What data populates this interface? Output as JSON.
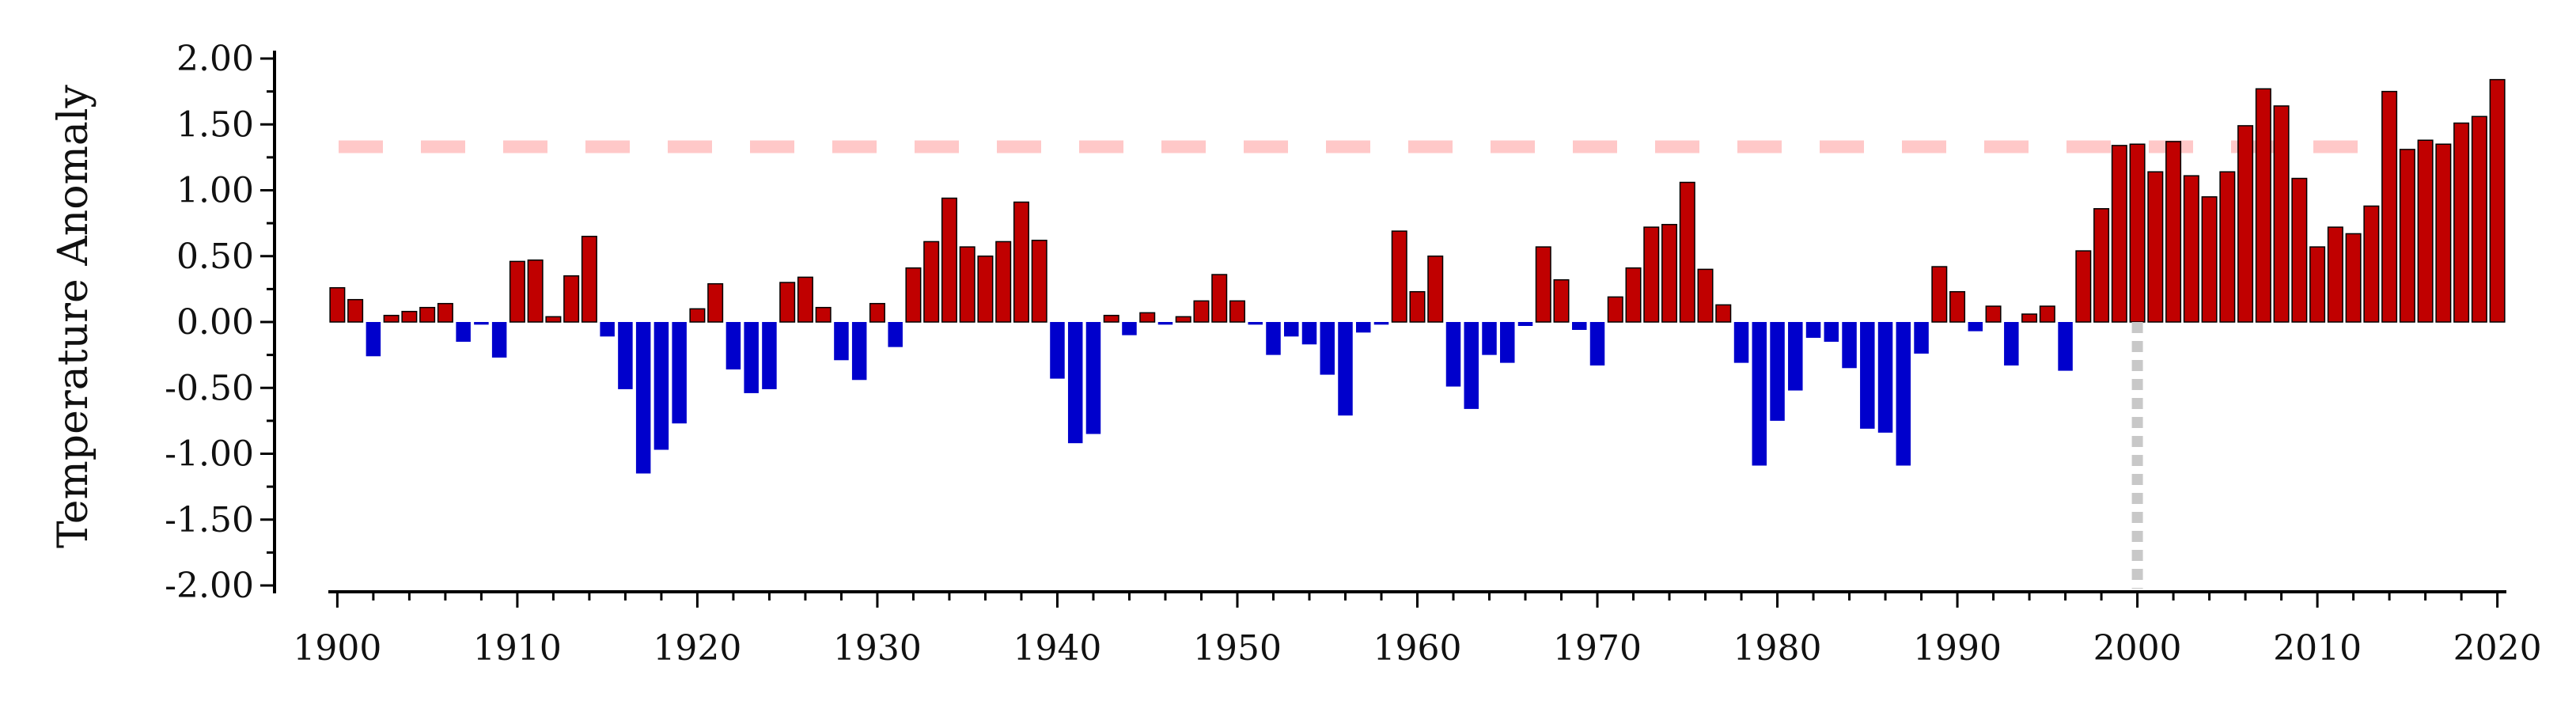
{
  "chart_data": {
    "type": "bar",
    "title": "",
    "ylabel": "Temperature Anomaly",
    "xlabel": "",
    "xlim": [
      1899.5,
      2020.5
    ],
    "ylim": [
      -2.0,
      2.0
    ],
    "y_ticks": [
      2.0,
      1.5,
      1.0,
      0.5,
      0.0,
      -0.5,
      -1.0,
      -1.5,
      -2.0
    ],
    "y_tick_labels": [
      "2.00",
      "1.50",
      "1.00",
      "0.50",
      "0.00",
      "-0.50",
      "-1.00",
      "-1.50",
      "-2.00"
    ],
    "x_ticks": [
      1900,
      1910,
      1920,
      1930,
      1940,
      1950,
      1960,
      1970,
      1980,
      1990,
      2000,
      2010,
      2020
    ],
    "x_tick_labels": [
      "1900",
      "1910",
      "1920",
      "1930",
      "1940",
      "1950",
      "1960",
      "1970",
      "1980",
      "1990",
      "2000",
      "2010",
      "2020"
    ],
    "grid": false,
    "legend": "none",
    "colors": {
      "positive": "#c00000",
      "negative": "#0000cc",
      "bar_outline": "#000000",
      "threshold_line": "#ffc8c8",
      "marker_line": "#c8c8c8"
    },
    "reference_lines": [
      {
        "orientation": "horizontal",
        "y": 1.33,
        "style": "dashed",
        "color": "#ffc8c8"
      },
      {
        "orientation": "vertical",
        "x": 2000,
        "y_from": -2.0,
        "y_to": 0.0,
        "style": "dotted",
        "color": "#c8c8c8"
      }
    ],
    "x": [
      1900,
      1901,
      1902,
      1903,
      1904,
      1905,
      1906,
      1907,
      1908,
      1909,
      1910,
      1911,
      1912,
      1913,
      1914,
      1915,
      1916,
      1917,
      1918,
      1919,
      1920,
      1921,
      1922,
      1923,
      1924,
      1925,
      1926,
      1927,
      1928,
      1929,
      1930,
      1931,
      1932,
      1933,
      1934,
      1935,
      1936,
      1937,
      1938,
      1939,
      1940,
      1941,
      1942,
      1943,
      1944,
      1945,
      1946,
      1947,
      1948,
      1949,
      1950,
      1951,
      1952,
      1953,
      1954,
      1955,
      1956,
      1957,
      1958,
      1959,
      1960,
      1961,
      1962,
      1963,
      1964,
      1965,
      1966,
      1967,
      1968,
      1969,
      1970,
      1971,
      1972,
      1973,
      1974,
      1975,
      1976,
      1977,
      1978,
      1979,
      1980,
      1981,
      1982,
      1983,
      1984,
      1985,
      1986,
      1987,
      1988,
      1989,
      1990,
      1991,
      1992,
      1993,
      1994,
      1995,
      1996,
      1997,
      1998,
      1999,
      2000,
      2001,
      2002,
      2003,
      2004,
      2005,
      2006,
      2007,
      2008,
      2009,
      2010,
      2011,
      2012,
      2013,
      2014,
      2015,
      2016,
      2017,
      2018,
      2019,
      2020
    ],
    "values": [
      0.26,
      0.17,
      -0.26,
      0.05,
      0.08,
      0.11,
      0.14,
      -0.15,
      -0.02,
      -0.27,
      0.46,
      0.47,
      0.04,
      0.35,
      0.65,
      -0.11,
      -0.51,
      -1.15,
      -0.97,
      -0.77,
      0.1,
      0.29,
      -0.36,
      -0.54,
      -0.51,
      0.3,
      0.34,
      0.11,
      -0.29,
      -0.44,
      0.14,
      -0.19,
      0.41,
      0.61,
      0.94,
      0.57,
      0.5,
      0.61,
      0.91,
      0.62,
      -0.43,
      -0.92,
      -0.85,
      0.05,
      -0.1,
      0.07,
      -0.02,
      0.04,
      0.16,
      0.36,
      0.16,
      -0.02,
      -0.25,
      -0.11,
      -0.17,
      -0.4,
      -0.71,
      -0.08,
      -0.02,
      0.69,
      0.23,
      0.5,
      -0.49,
      -0.66,
      -0.25,
      -0.31,
      -0.03,
      0.57,
      0.32,
      -0.06,
      -0.33,
      0.19,
      0.41,
      0.72,
      0.74,
      1.06,
      0.4,
      0.13,
      -0.31,
      -1.09,
      -0.75,
      -0.52,
      -0.12,
      -0.15,
      -0.35,
      -0.81,
      -0.84,
      -1.09,
      -0.24,
      0.42,
      0.23,
      -0.07,
      0.12,
      -0.33,
      0.06,
      0.12,
      -0.37,
      0.54,
      0.86,
      1.34,
      1.35,
      1.14,
      1.37,
      1.11,
      0.95,
      1.14,
      1.49,
      1.77,
      1.64,
      1.09,
      0.57,
      0.72,
      0.67,
      0.88,
      1.75,
      1.31,
      1.38,
      1.35,
      1.51,
      1.56,
      1.84
    ]
  }
}
